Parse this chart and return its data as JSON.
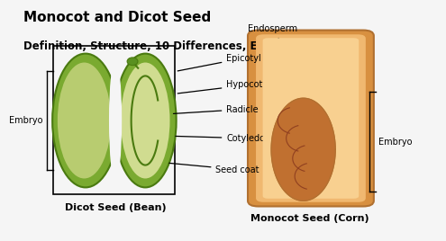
{
  "title1": "Monocot and Dicot Seed",
  "title2": "Definition, Structure, 10 Differences, Examples",
  "title_fontsize": 11,
  "subtitle_fontsize": 8.5,
  "bg_color": "#f5f5f5",
  "dicot_label": "Dicot Seed (Bean)",
  "monocot_label": "Monocot Seed (Corn)",
  "embryo_left": "Embryo",
  "embryo_right": "Embryo",
  "dicot_outer_color": "#7aaa30",
  "dicot_inner_color": "#b8cc70",
  "dicot_seed2_color": "#d0dc90",
  "dicot_edge_color": "#4a7a10",
  "monocot_outer_color": "#d89040",
  "monocot_mid_color": "#f0b870",
  "monocot_inner_color": "#f8d090",
  "monocot_embryo_color": "#c07030",
  "monocot_edge_color": "#b07030",
  "label_fontsize": 8,
  "annotation_fontsize": 7
}
